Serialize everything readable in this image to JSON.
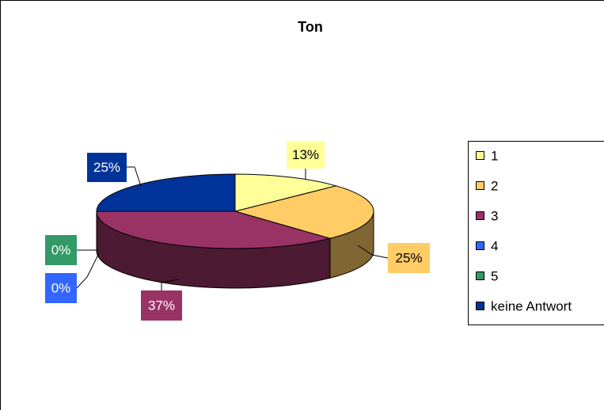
{
  "chart_data": {
    "type": "pie3d",
    "title": "Ton",
    "categories": [
      "1",
      "2",
      "3",
      "4",
      "5",
      "keine Antwort"
    ],
    "values": [
      13,
      25,
      37,
      0,
      0,
      25
    ],
    "value_labels": [
      "13%",
      "25%",
      "37%",
      "0%",
      "0%",
      "25%"
    ],
    "colors": [
      "#ffff99",
      "#ffcc66",
      "#993366",
      "#3366ff",
      "#339966",
      "#003399"
    ],
    "legend": "right"
  }
}
